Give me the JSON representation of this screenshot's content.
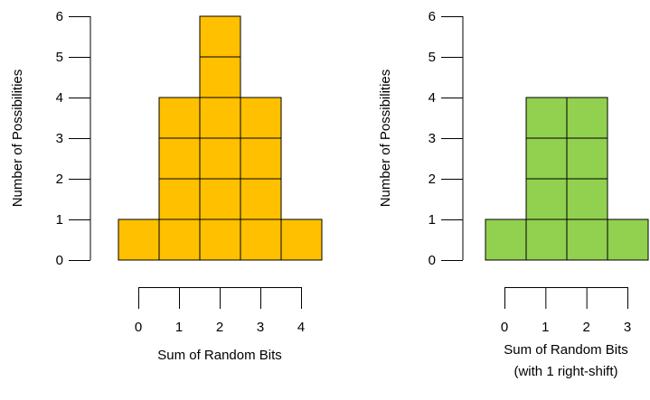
{
  "chart_data": [
    {
      "type": "bar",
      "style": "stacked-unit-squares",
      "color": "#FFC000",
      "categories": [
        "0",
        "1",
        "2",
        "3",
        "4"
      ],
      "values": [
        1,
        4,
        6,
        4,
        1
      ],
      "ylabel": "Number of Possibilities",
      "xlabel_lines": [
        "Sum of Random Bits"
      ],
      "yticks": [
        "0",
        "1",
        "2",
        "3",
        "4",
        "5",
        "6"
      ],
      "ylim": [
        0,
        6
      ],
      "grid": false,
      "legend": "none"
    },
    {
      "type": "bar",
      "style": "stacked-unit-squares",
      "color": "#92D050",
      "categories": [
        "0",
        "1",
        "2",
        "3"
      ],
      "values": [
        1,
        4,
        4,
        1
      ],
      "ylabel": "Number of Possibilities",
      "xlabel_lines": [
        "Sum of Random Bits",
        "(with 1 right-shift)"
      ],
      "yticks": [
        "0",
        "1",
        "2",
        "3",
        "4",
        "5",
        "6"
      ],
      "ylim": [
        0,
        6
      ],
      "grid": false,
      "legend": "none"
    }
  ]
}
